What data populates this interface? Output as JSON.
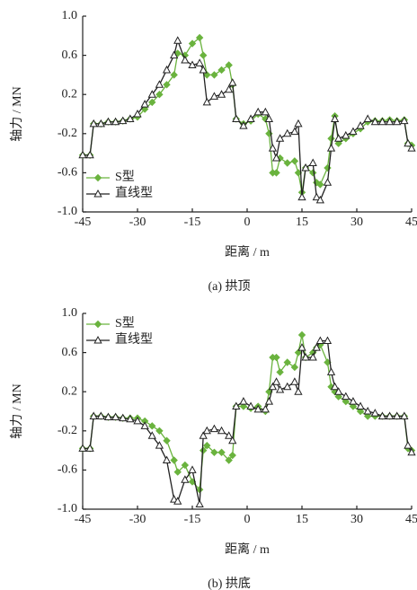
{
  "chart_data": [
    {
      "type": "line",
      "xlabel": "距离 / m",
      "ylabel": "轴力 / MN",
      "caption": "(a) 拱顶",
      "x": [
        -45,
        -43,
        -42,
        -40,
        -38,
        -36,
        -34,
        -32,
        -30,
        -28,
        -26,
        -24,
        -22,
        -20,
        -19,
        -17,
        -15,
        -13,
        -12,
        -11,
        -9,
        -7,
        -5,
        -4,
        -3,
        -1,
        1,
        3,
        5,
        6,
        7,
        8,
        9,
        11,
        13,
        14,
        15,
        16,
        18,
        19,
        20,
        22,
        23,
        24,
        25,
        27,
        29,
        31,
        33,
        35,
        37,
        39,
        41,
        43,
        44,
        45
      ],
      "series": [
        {
          "name": "S型",
          "color": "#6ab33e",
          "marker": "diamond",
          "values": [
            -0.42,
            -0.42,
            -0.1,
            -0.1,
            -0.08,
            -0.08,
            -0.07,
            -0.05,
            -0.03,
            0.05,
            0.12,
            0.2,
            0.3,
            0.4,
            0.62,
            0.6,
            0.72,
            0.78,
            0.6,
            0.4,
            0.4,
            0.45,
            0.5,
            0.3,
            -0.05,
            -0.1,
            -0.07,
            0.0,
            -0.05,
            -0.2,
            -0.6,
            -0.6,
            -0.45,
            -0.5,
            -0.48,
            -0.6,
            -0.8,
            -0.55,
            -0.6,
            -0.7,
            -0.72,
            -0.55,
            -0.25,
            -0.02,
            -0.3,
            -0.25,
            -0.2,
            -0.15,
            -0.08,
            -0.07,
            -0.07,
            -0.06,
            -0.07,
            -0.06,
            -0.3,
            -0.32
          ]
        },
        {
          "name": "直线型",
          "color": "#222222",
          "marker": "triangle",
          "values": [
            -0.42,
            -0.42,
            -0.1,
            -0.1,
            -0.08,
            -0.08,
            -0.07,
            -0.05,
            0.0,
            0.1,
            0.2,
            0.3,
            0.45,
            0.6,
            0.75,
            0.55,
            0.5,
            0.52,
            0.45,
            0.12,
            0.18,
            0.2,
            0.25,
            0.32,
            -0.05,
            -0.12,
            -0.05,
            0.02,
            0.02,
            -0.05,
            -0.35,
            -0.45,
            -0.25,
            -0.2,
            -0.18,
            -0.1,
            -0.85,
            -0.55,
            -0.5,
            -0.85,
            -0.88,
            -0.7,
            -0.35,
            -0.05,
            -0.25,
            -0.22,
            -0.18,
            -0.12,
            -0.05,
            -0.08,
            -0.08,
            -0.08,
            -0.08,
            -0.07,
            -0.3,
            -0.35
          ]
        }
      ],
      "xlim": [
        -45,
        45
      ],
      "xticks": [
        -45,
        -30,
        -15,
        0,
        15,
        30,
        45
      ],
      "ylim": [
        -1,
        1
      ],
      "yticks": [
        {
          "value": -1,
          "label": "-1.0"
        },
        -0.6,
        -0.2,
        0.2,
        0.6,
        {
          "value": 1,
          "label": "1.0"
        }
      ],
      "legend": "lower left"
    },
    {
      "type": "line",
      "xlabel": "距离 / m",
      "ylabel": "轴力 / MN",
      "caption": "(b) 拱底",
      "x": [
        -45,
        -43,
        -42,
        -40,
        -38,
        -36,
        -34,
        -32,
        -30,
        -28,
        -26,
        -24,
        -22,
        -20,
        -19,
        -17,
        -15,
        -13,
        -12,
        -11,
        -9,
        -7,
        -5,
        -4,
        -3,
        -1,
        1,
        3,
        5,
        6,
        7,
        8,
        9,
        11,
        13,
        14,
        15,
        16,
        18,
        19,
        20,
        22,
        23,
        24,
        25,
        27,
        29,
        31,
        33,
        35,
        37,
        39,
        41,
        43,
        44,
        45
      ],
      "series": [
        {
          "name": "S型",
          "color": "#6ab33e",
          "marker": "diamond",
          "values": [
            -0.38,
            -0.38,
            -0.05,
            -0.05,
            -0.06,
            -0.06,
            -0.07,
            -0.07,
            -0.07,
            -0.1,
            -0.15,
            -0.2,
            -0.3,
            -0.5,
            -0.62,
            -0.55,
            -0.72,
            -0.8,
            -0.4,
            -0.35,
            -0.42,
            -0.42,
            -0.5,
            -0.45,
            0.05,
            0.05,
            0.03,
            0.05,
            0.0,
            0.2,
            0.55,
            0.55,
            0.4,
            0.5,
            0.45,
            0.6,
            0.78,
            0.55,
            0.6,
            0.65,
            0.68,
            0.5,
            0.25,
            0.2,
            0.15,
            0.1,
            0.05,
            0.0,
            -0.05,
            -0.05,
            -0.05,
            -0.05,
            -0.05,
            -0.05,
            -0.38,
            -0.4
          ]
        },
        {
          "name": "直线型",
          "color": "#222222",
          "marker": "triangle",
          "values": [
            -0.38,
            -0.38,
            -0.05,
            -0.05,
            -0.06,
            -0.06,
            -0.07,
            -0.08,
            -0.1,
            -0.15,
            -0.25,
            -0.35,
            -0.5,
            -0.9,
            -0.92,
            -0.7,
            -0.6,
            -0.95,
            -0.25,
            -0.2,
            -0.18,
            -0.2,
            -0.25,
            -0.3,
            0.05,
            0.1,
            0.05,
            0.02,
            0.02,
            0.1,
            0.25,
            0.3,
            0.22,
            0.25,
            0.3,
            0.2,
            0.65,
            0.55,
            0.55,
            0.65,
            0.72,
            0.72,
            0.4,
            0.25,
            0.2,
            0.15,
            0.1,
            0.05,
            0.0,
            -0.02,
            -0.05,
            -0.05,
            -0.05,
            -0.05,
            -0.35,
            -0.42
          ]
        }
      ],
      "xlim": [
        -45,
        45
      ],
      "xticks": [
        -45,
        -30,
        -15,
        0,
        15,
        30,
        45
      ],
      "ylim": [
        -1,
        1
      ],
      "yticks": [
        {
          "value": -1,
          "label": "-1.0"
        },
        -0.6,
        -0.2,
        0.2,
        0.6,
        {
          "value": 1,
          "label": "1.0"
        }
      ],
      "legend": "upper left"
    }
  ]
}
